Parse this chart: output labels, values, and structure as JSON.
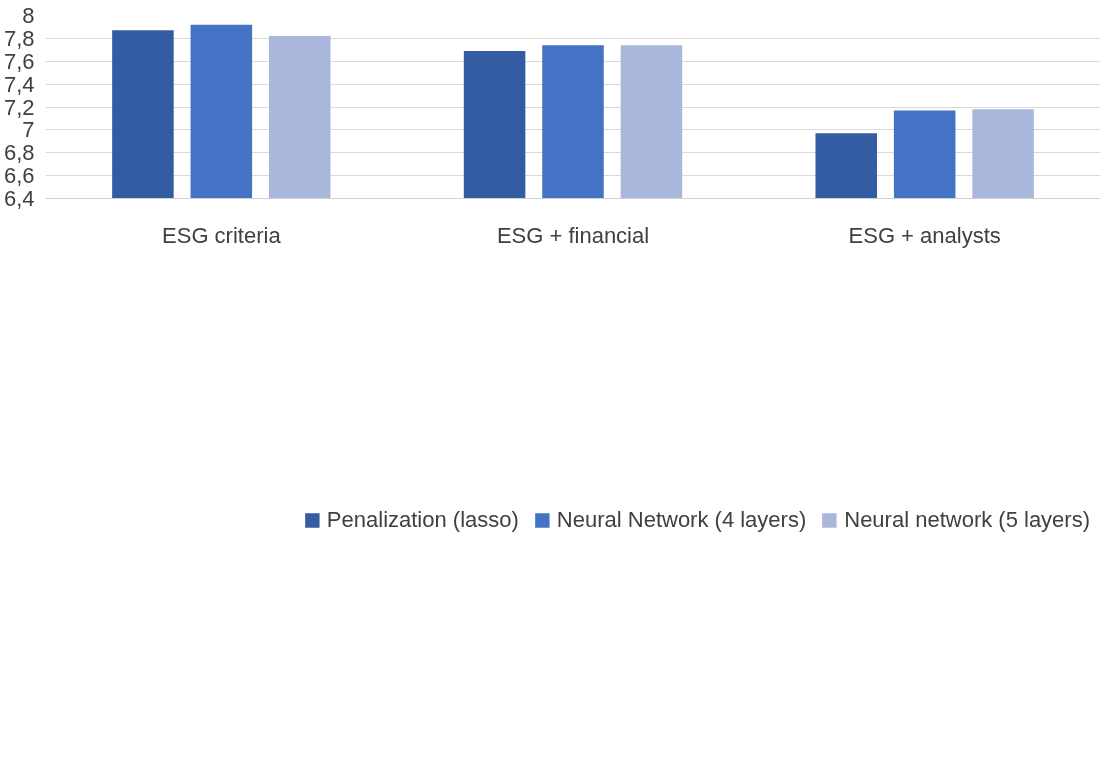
{
  "chart_data": {
    "type": "bar",
    "categories": [
      "ESG criteria",
      "ESG + financial",
      "ESG + analysts"
    ],
    "series": [
      {
        "name": "Penalization (lasso)",
        "color": "#335ca3",
        "values": [
          7.87,
          7.69,
          6.97
        ]
      },
      {
        "name": "Neural Network (4 layers)",
        "color": "#4472c4",
        "values": [
          7.92,
          7.74,
          7.17
        ]
      },
      {
        "name": "Neural network (5 layers)",
        "color": "#a9b7dc",
        "values": [
          7.82,
          7.74,
          7.18
        ]
      }
    ],
    "ylim": [
      6.4,
      8
    ],
    "yticks": [
      {
        "value": 6.4,
        "label": "6,4"
      },
      {
        "value": 6.6,
        "label": "6,6"
      },
      {
        "value": 6.8,
        "label": "6,8"
      },
      7,
      {
        "value": 7.2,
        "label": "7,2"
      },
      {
        "value": 7.4,
        "label": "7,4"
      },
      {
        "value": 7.6,
        "label": "7,6"
      },
      {
        "value": 7.8,
        "label": "7,8"
      },
      8
    ],
    "grid": "y",
    "legend": "bottom"
  }
}
